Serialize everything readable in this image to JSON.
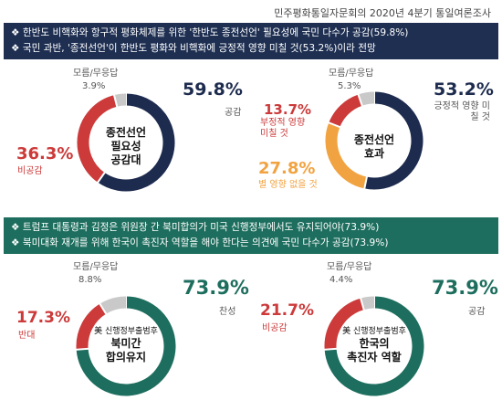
{
  "source": "민주평화통일자문회의 2020년 4분기 통일여론조사",
  "banner1": [
    "❖ 한반도 비핵화와 항구적 평화체제를 위한 '한반도 종전선언' 필요성에 국민 다수가 공감(59.8%)",
    "❖ 국민 과반, '종전선언'이 한반도 평화와 비핵화에 긍정적 영향 미칠 것(53.2%)이라 전망"
  ],
  "banner2": [
    "❖ 트럼프 대통령과 김정은 위원장 간 북미합의가 미국 신행정부에서도 유지되어야(73.9%)",
    "❖ 북미대화 재개를 위해 한국이 촉진자 역할을 해야 한다는 의견에 국민 다수가 공감(73.9%)"
  ],
  "colors": {
    "navy": "#1d2b4e",
    "red": "#cc3a3a",
    "gray": "#c9c9c9",
    "orange": "#f2a341",
    "green": "#1d6e5e"
  },
  "chart_data": [
    {
      "type": "pie",
      "center": [
        "종전선언",
        "필요성",
        "공감대"
      ],
      "slices": [
        {
          "label": "공감",
          "value": 59.8,
          "display": "59.8%",
          "color": "#1d2b4e"
        },
        {
          "label": "비공감",
          "value": 36.3,
          "display": "36.3%",
          "color": "#cc3a3a"
        },
        {
          "label": "모름/무응답",
          "value": 3.9,
          "display": "3.9%",
          "color": "#c9c9c9"
        }
      ]
    },
    {
      "type": "pie",
      "center": [
        "종전선언",
        "효과"
      ],
      "slices": [
        {
          "label": "긍정적 영향 미칠 것",
          "value": 53.2,
          "display": "53.2%",
          "color": "#1d2b4e"
        },
        {
          "label": "별 영향 없을 것",
          "value": 27.8,
          "display": "27.8%",
          "color": "#f2a341"
        },
        {
          "label": "부정적 영향 미칠 것",
          "value": 13.7,
          "display": "13.7%",
          "color": "#cc3a3a"
        },
        {
          "label": "모름/무응답",
          "value": 5.3,
          "display": "5.3%",
          "color": "#c9c9c9"
        }
      ]
    },
    {
      "type": "pie",
      "center_sub": "美 신행정부출범후",
      "center": [
        "북미간",
        "합의유지"
      ],
      "slices": [
        {
          "label": "찬성",
          "value": 73.9,
          "display": "73.9%",
          "color": "#1d6e5e"
        },
        {
          "label": "반대",
          "value": 17.3,
          "display": "17.3%",
          "color": "#cc3a3a"
        },
        {
          "label": "모름/무응답",
          "value": 8.8,
          "display": "8.8%",
          "color": "#c9c9c9"
        }
      ]
    },
    {
      "type": "pie",
      "center_sub": "美 신행정부출범후",
      "center": [
        "한국의",
        "촉진자 역할"
      ],
      "slices": [
        {
          "label": "공감",
          "value": 73.9,
          "display": "73.9%",
          "color": "#1d6e5e"
        },
        {
          "label": "비공감",
          "value": 21.7,
          "display": "21.7%",
          "color": "#cc3a3a"
        },
        {
          "label": "모름/무응답",
          "value": 4.4,
          "display": "4.4%",
          "color": "#c9c9c9"
        }
      ]
    }
  ]
}
